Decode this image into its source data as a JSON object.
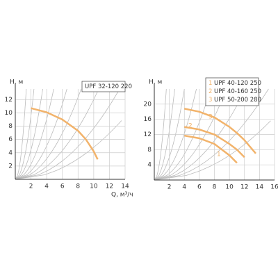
{
  "chart_data": [
    {
      "type": "line",
      "y_label": "H, м",
      "x_label": "Q, м³/ч",
      "x": [
        2,
        4,
        6,
        8,
        9,
        10,
        10.5
      ],
      "series": [
        {
          "name": "UPF 32-120 220",
          "color": "#f2b36b",
          "values": [
            10.7,
            10.1,
            9.0,
            7.3,
            6.0,
            4.2,
            3.0
          ]
        }
      ],
      "xlim": [
        0,
        14
      ],
      "ylim": [
        0,
        13.6
      ],
      "xticks": [
        2,
        4,
        6,
        8,
        10,
        12,
        14
      ],
      "yticks": [
        2,
        4,
        6,
        8,
        10,
        12
      ],
      "grid": true
    },
    {
      "type": "line",
      "y_label": "H, м",
      "x": [
        4,
        6,
        8,
        10,
        11,
        12,
        13.5
      ],
      "series": [
        {
          "name": "UPF 40-120 250",
          "marker": "1",
          "color": "#f2b36b",
          "values": [
            11.7,
            11.0,
            9.5,
            6.5,
            4.5,
            null,
            null
          ]
        },
        {
          "name": "UPF 40-160 250",
          "marker": "2",
          "color": "#f2b36b",
          "values": [
            14.0,
            13.3,
            12.0,
            9.5,
            8.0,
            6.0,
            null
          ]
        },
        {
          "name": "UPF 50-200 280",
          "marker": "3",
          "color": "#f2b36b",
          "values": [
            18.8,
            18.0,
            16.5,
            14.0,
            12.4,
            10.5,
            7.0
          ]
        }
      ],
      "xlim": [
        0,
        16
      ],
      "ylim": [
        0,
        24
      ],
      "xticks": [
        2,
        4,
        6,
        8,
        10,
        12,
        14,
        16
      ],
      "yticks": [
        4,
        8,
        12,
        16,
        20
      ],
      "grid": true
    }
  ]
}
